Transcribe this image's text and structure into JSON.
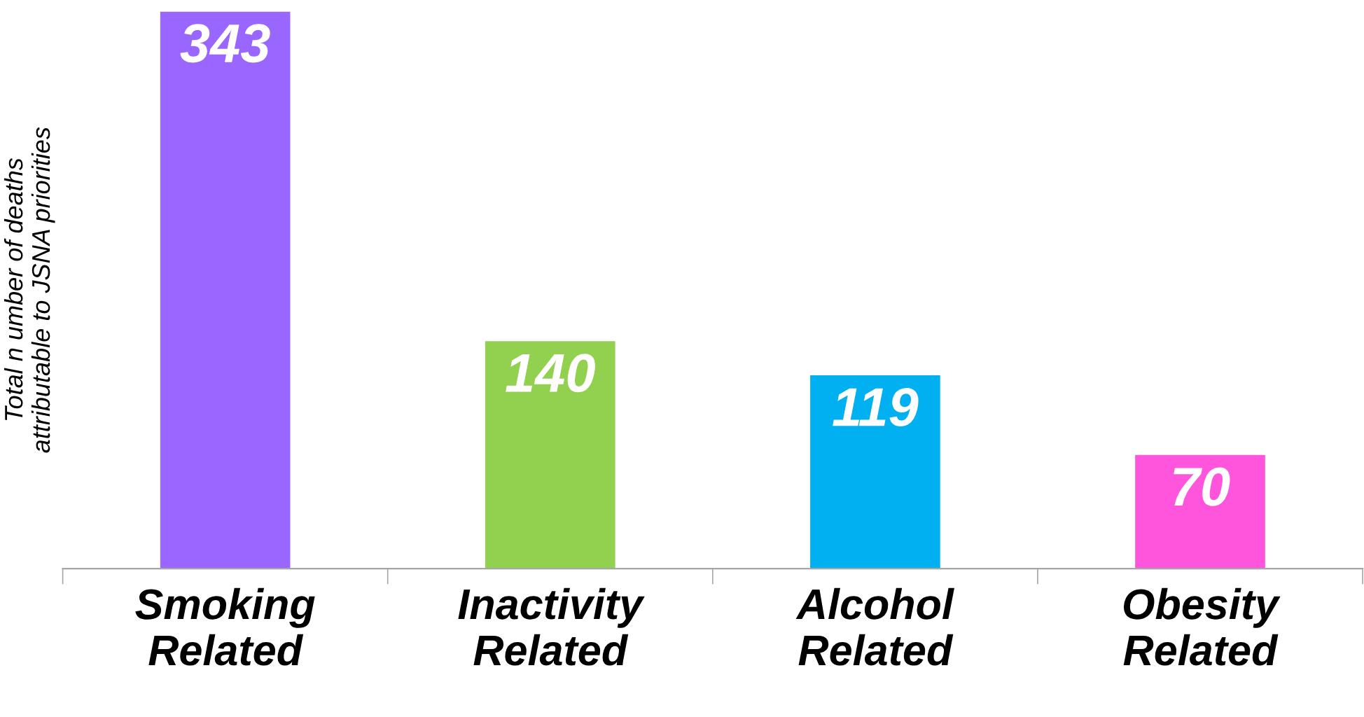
{
  "chart_data": {
    "type": "bar",
    "ylabel": "Total n umber of deaths\nattributable to JSNA priorities",
    "categories": [
      "Smoking\nRelated",
      "Inactivity\nRelated",
      "Alcohol\nRelated",
      "Obesity\nRelated"
    ],
    "values": [
      343,
      140,
      119,
      70
    ],
    "colors": [
      "#9966ff",
      "#92d050",
      "#00b0f0",
      "#ff55dd"
    ],
    "data_labels": true
  }
}
